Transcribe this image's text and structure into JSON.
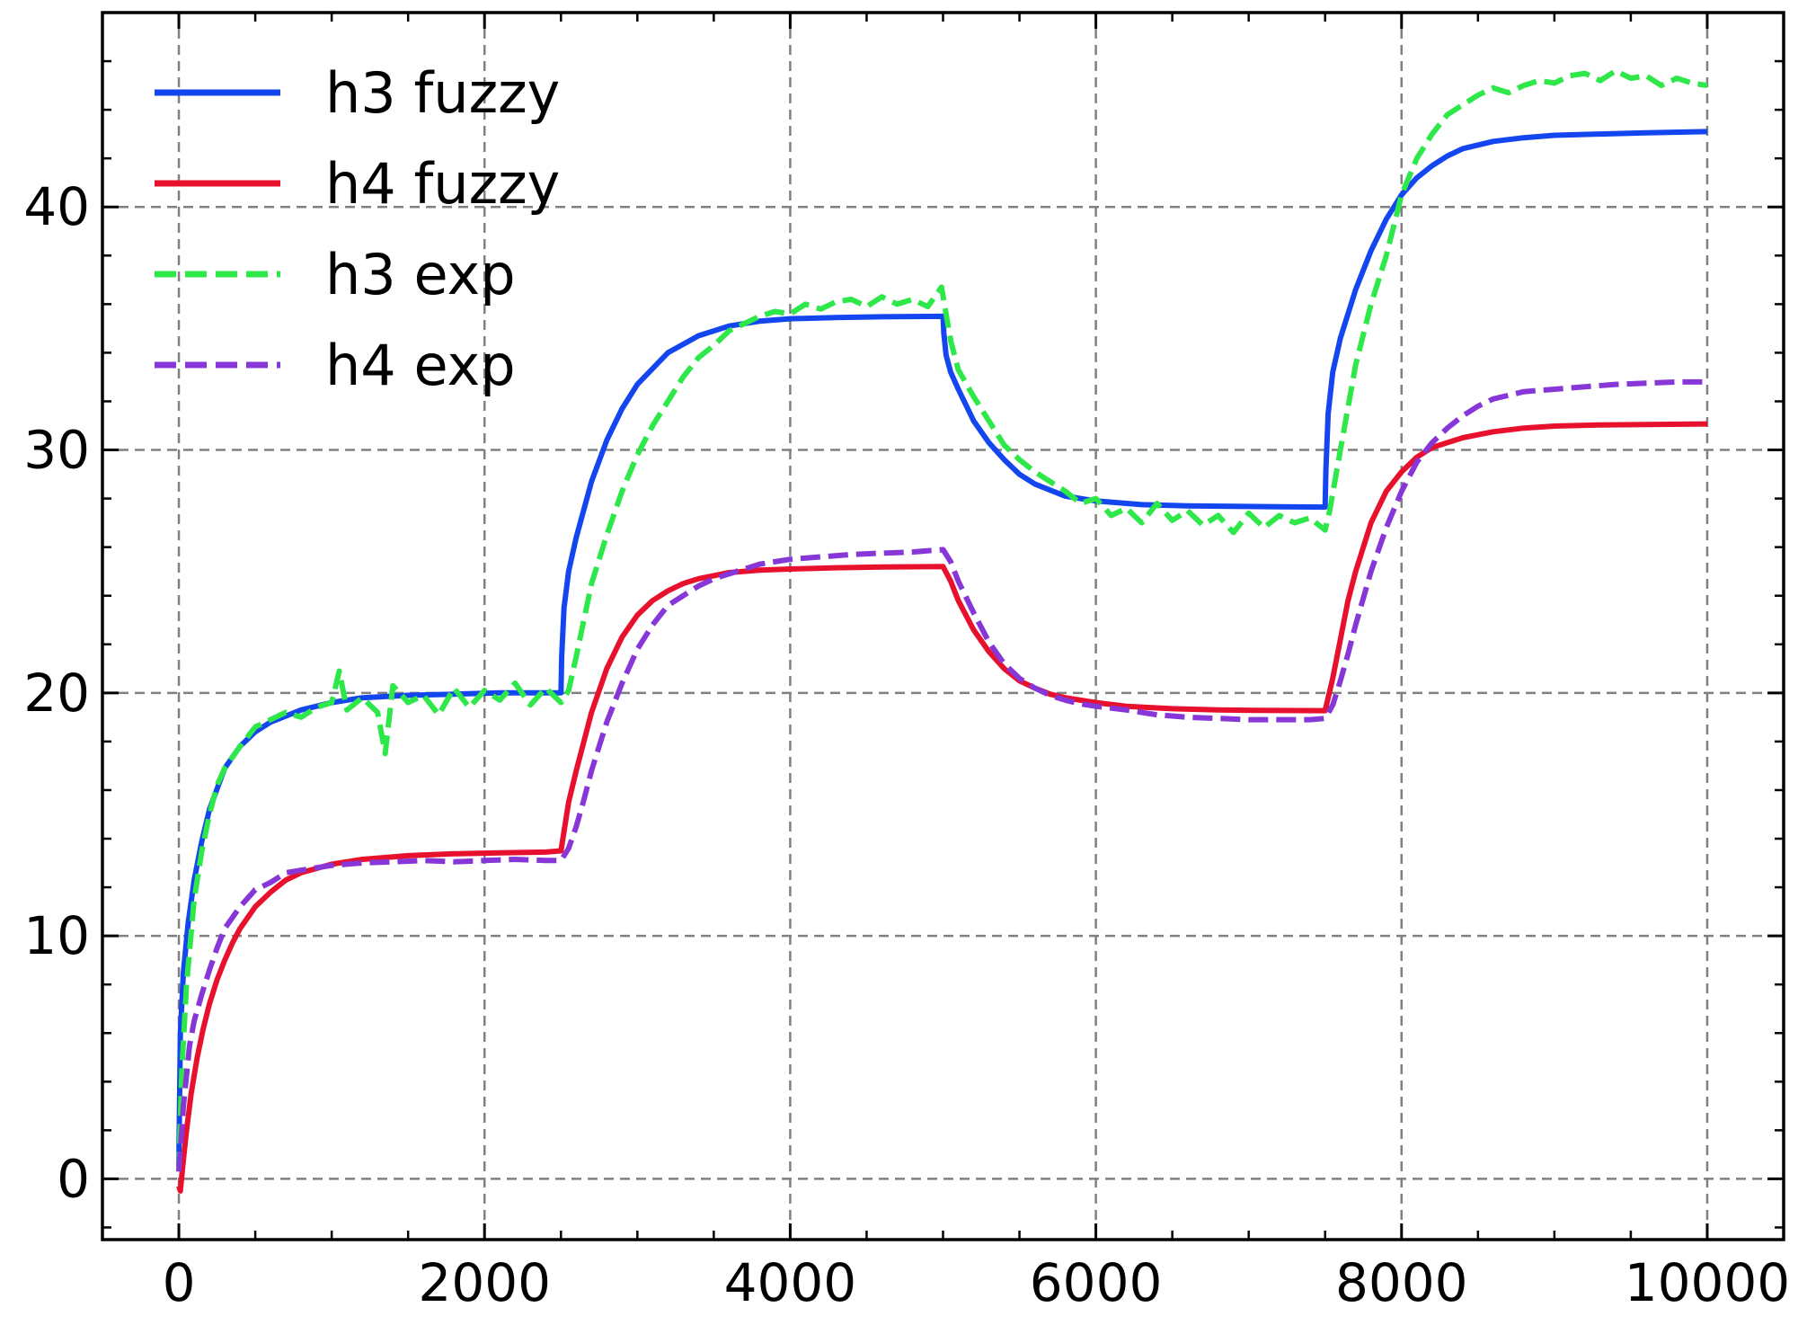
{
  "chart_data": {
    "type": "line",
    "title": "",
    "xlabel": "",
    "ylabel": "",
    "xlim": [
      -500,
      10500
    ],
    "ylim": [
      -2.5,
      48
    ],
    "xticks": [
      0,
      2000,
      4000,
      6000,
      8000,
      10000
    ],
    "xtick_labels": [
      "0",
      "2000",
      "4000",
      "6000",
      "8000",
      "10000"
    ],
    "yticks": [
      0,
      10,
      20,
      30,
      40
    ],
    "ytick_labels": [
      "0",
      "10",
      "20",
      "30",
      "40"
    ],
    "grid": true,
    "legend_position": "top-left",
    "series": [
      {
        "name": "h3 fuzzy",
        "color": "#1446f0",
        "style": "solid",
        "x": [
          0,
          10,
          30,
          60,
          100,
          150,
          200,
          300,
          400,
          500,
          600,
          800,
          1000,
          1200,
          1500,
          1800,
          2100,
          2400,
          2500,
          2505,
          2520,
          2550,
          2600,
          2700,
          2800,
          2900,
          3000,
          3200,
          3400,
          3600,
          3800,
          4000,
          4300,
          4600,
          5000,
          5005,
          5020,
          5050,
          5100,
          5200,
          5300,
          5400,
          5500,
          5600,
          5800,
          6000,
          6300,
          6600,
          6900,
          7200,
          7500,
          7505,
          7520,
          7550,
          7600,
          7700,
          7800,
          7900,
          8000,
          8100,
          8200,
          8300,
          8400,
          8600,
          8800,
          9000,
          9300,
          9600,
          10000
        ],
        "y": [
          0.5,
          6.0,
          8.5,
          10.5,
          12.3,
          13.9,
          15.2,
          16.9,
          17.8,
          18.4,
          18.8,
          19.3,
          19.6,
          19.8,
          19.9,
          19.95,
          20.0,
          20.0,
          20.0,
          21.5,
          23.5,
          25.0,
          26.4,
          28.7,
          30.4,
          31.7,
          32.7,
          34.0,
          34.7,
          35.1,
          35.3,
          35.4,
          35.45,
          35.48,
          35.5,
          34.8,
          33.9,
          33.2,
          32.5,
          31.2,
          30.3,
          29.6,
          29.0,
          28.6,
          28.1,
          27.9,
          27.75,
          27.7,
          27.68,
          27.66,
          27.65,
          29.2,
          31.5,
          33.2,
          34.6,
          36.6,
          38.2,
          39.5,
          40.5,
          41.2,
          41.7,
          42.1,
          42.4,
          42.7,
          42.85,
          42.95,
          43.0,
          43.05,
          43.1
        ]
      },
      {
        "name": "h4 fuzzy",
        "color": "#e8112d",
        "style": "solid",
        "x": [
          0,
          10,
          25,
          50,
          80,
          120,
          160,
          200,
          250,
          300,
          350,
          400,
          500,
          600,
          700,
          800,
          1000,
          1200,
          1500,
          1800,
          2100,
          2400,
          2500,
          2520,
          2550,
          2600,
          2650,
          2700,
          2800,
          2900,
          3000,
          3100,
          3200,
          3300,
          3400,
          3600,
          3800,
          4000,
          4300,
          4600,
          5000,
          5050,
          5100,
          5200,
          5300,
          5400,
          5500,
          5600,
          5700,
          5800,
          6000,
          6200,
          6500,
          6800,
          7100,
          7500,
          7550,
          7600,
          7650,
          7700,
          7800,
          7900,
          8000,
          8100,
          8200,
          8400,
          8600,
          8800,
          9000,
          9300,
          9600,
          10000
        ],
        "y": [
          -0.3,
          -0.5,
          0.5,
          2.0,
          3.5,
          5.0,
          6.2,
          7.2,
          8.2,
          9.0,
          9.7,
          10.3,
          11.2,
          11.8,
          12.3,
          12.6,
          12.95,
          13.15,
          13.3,
          13.38,
          13.42,
          13.45,
          13.5,
          14.3,
          15.5,
          16.8,
          18.0,
          19.2,
          21.0,
          22.3,
          23.2,
          23.8,
          24.2,
          24.5,
          24.7,
          24.95,
          25.05,
          25.1,
          25.15,
          25.18,
          25.2,
          24.6,
          23.8,
          22.6,
          21.7,
          21.0,
          20.5,
          20.2,
          19.95,
          19.8,
          19.6,
          19.45,
          19.35,
          19.3,
          19.28,
          19.27,
          20.6,
          22.2,
          23.8,
          25.0,
          27.0,
          28.3,
          29.1,
          29.7,
          30.1,
          30.5,
          30.75,
          30.9,
          30.98,
          31.03,
          31.05,
          31.07
        ]
      },
      {
        "name": "h3 exp",
        "color": "#2ee84a",
        "style": "dashed",
        "x": [
          0,
          20,
          50,
          100,
          150,
          200,
          250,
          300,
          400,
          500,
          600,
          700,
          800,
          900,
          1000,
          1050,
          1100,
          1200,
          1300,
          1350,
          1400,
          1500,
          1600,
          1700,
          1800,
          1900,
          2000,
          2100,
          2200,
          2300,
          2400,
          2500,
          2550,
          2600,
          2650,
          2700,
          2800,
          2900,
          3000,
          3100,
          3200,
          3300,
          3400,
          3500,
          3600,
          3700,
          3800,
          3900,
          4000,
          4100,
          4200,
          4300,
          4400,
          4500,
          4600,
          4700,
          4800,
          4900,
          4990,
          5050,
          5100,
          5200,
          5300,
          5400,
          5500,
          5600,
          5700,
          5800,
          5900,
          6000,
          6100,
          6200,
          6300,
          6400,
          6500,
          6600,
          6700,
          6800,
          6900,
          7000,
          7100,
          7200,
          7300,
          7400,
          7500,
          7530,
          7600,
          7700,
          7800,
          7900,
          8000,
          8100,
          8200,
          8300,
          8400,
          8500,
          8600,
          8700,
          8800,
          8900,
          9000,
          9100,
          9200,
          9300,
          9400,
          9500,
          9600,
          9700,
          9800,
          9900,
          10000
        ],
        "y": [
          0.3,
          4.5,
          8.0,
          11.5,
          13.5,
          15.0,
          16.2,
          16.9,
          17.8,
          18.6,
          18.9,
          19.2,
          19.0,
          19.4,
          19.6,
          20.9,
          19.3,
          19.8,
          19.2,
          17.5,
          20.3,
          19.6,
          19.9,
          19.1,
          20.2,
          19.4,
          20.1,
          19.7,
          20.4,
          19.5,
          20.2,
          19.6,
          20.1,
          21.5,
          23.0,
          24.5,
          26.5,
          28.3,
          29.8,
          31.0,
          32.0,
          33.0,
          33.8,
          34.3,
          34.9,
          35.2,
          35.5,
          35.7,
          35.6,
          36.0,
          35.8,
          36.1,
          36.2,
          35.9,
          36.3,
          36.0,
          36.2,
          35.9,
          36.7,
          34.5,
          33.3,
          32.2,
          31.2,
          30.2,
          29.6,
          29.1,
          28.7,
          28.3,
          27.8,
          28.0,
          27.3,
          27.6,
          27.0,
          27.8,
          27.1,
          27.5,
          26.9,
          27.3,
          26.6,
          27.4,
          26.8,
          27.3,
          27.0,
          27.2,
          26.7,
          27.5,
          30.0,
          33.5,
          36.0,
          38.0,
          40.5,
          42.0,
          43.0,
          43.8,
          44.2,
          44.6,
          44.9,
          44.7,
          45.0,
          45.2,
          45.1,
          45.4,
          45.5,
          45.2,
          45.6,
          45.3,
          45.4,
          45.0,
          45.3,
          45.1,
          45.0
        ]
      },
      {
        "name": "h4 exp",
        "color": "#8737d8",
        "style": "dashed",
        "x": [
          0,
          30,
          70,
          100,
          150,
          200,
          250,
          300,
          400,
          500,
          600,
          700,
          800,
          900,
          1000,
          1200,
          1400,
          1600,
          1800,
          2000,
          2200,
          2400,
          2500,
          2550,
          2600,
          2650,
          2700,
          2800,
          2900,
          3000,
          3100,
          3200,
          3300,
          3400,
          3500,
          3600,
          3700,
          3800,
          3900,
          4000,
          4200,
          4400,
          4600,
          4800,
          5000,
          5050,
          5100,
          5200,
          5300,
          5400,
          5500,
          5600,
          5700,
          5800,
          5900,
          6000,
          6200,
          6400,
          6600,
          6800,
          7000,
          7200,
          7400,
          7500,
          7550,
          7600,
          7650,
          7700,
          7800,
          7900,
          8000,
          8100,
          8200,
          8300,
          8400,
          8500,
          8600,
          8800,
          9000,
          9200,
          9400,
          9600,
          9800,
          10000
        ],
        "y": [
          0.3,
          3.0,
          5.5,
          6.5,
          7.6,
          8.6,
          9.5,
          10.3,
          11.2,
          11.9,
          12.2,
          12.6,
          12.7,
          12.8,
          12.9,
          13.0,
          13.05,
          13.1,
          13.05,
          13.1,
          13.15,
          13.1,
          13.1,
          13.6,
          14.5,
          15.6,
          16.8,
          18.8,
          20.4,
          21.8,
          22.8,
          23.6,
          24.0,
          24.4,
          24.7,
          24.9,
          25.1,
          25.3,
          25.4,
          25.5,
          25.6,
          25.7,
          25.75,
          25.8,
          25.9,
          25.4,
          24.6,
          23.3,
          22.1,
          21.2,
          20.6,
          20.2,
          19.9,
          19.7,
          19.55,
          19.45,
          19.3,
          19.1,
          19.0,
          18.95,
          18.9,
          18.9,
          18.9,
          18.95,
          19.5,
          20.5,
          21.6,
          22.8,
          25.0,
          26.8,
          28.3,
          29.5,
          30.3,
          30.9,
          31.4,
          31.8,
          32.1,
          32.4,
          32.5,
          32.6,
          32.7,
          32.75,
          32.8,
          32.8
        ]
      }
    ]
  }
}
